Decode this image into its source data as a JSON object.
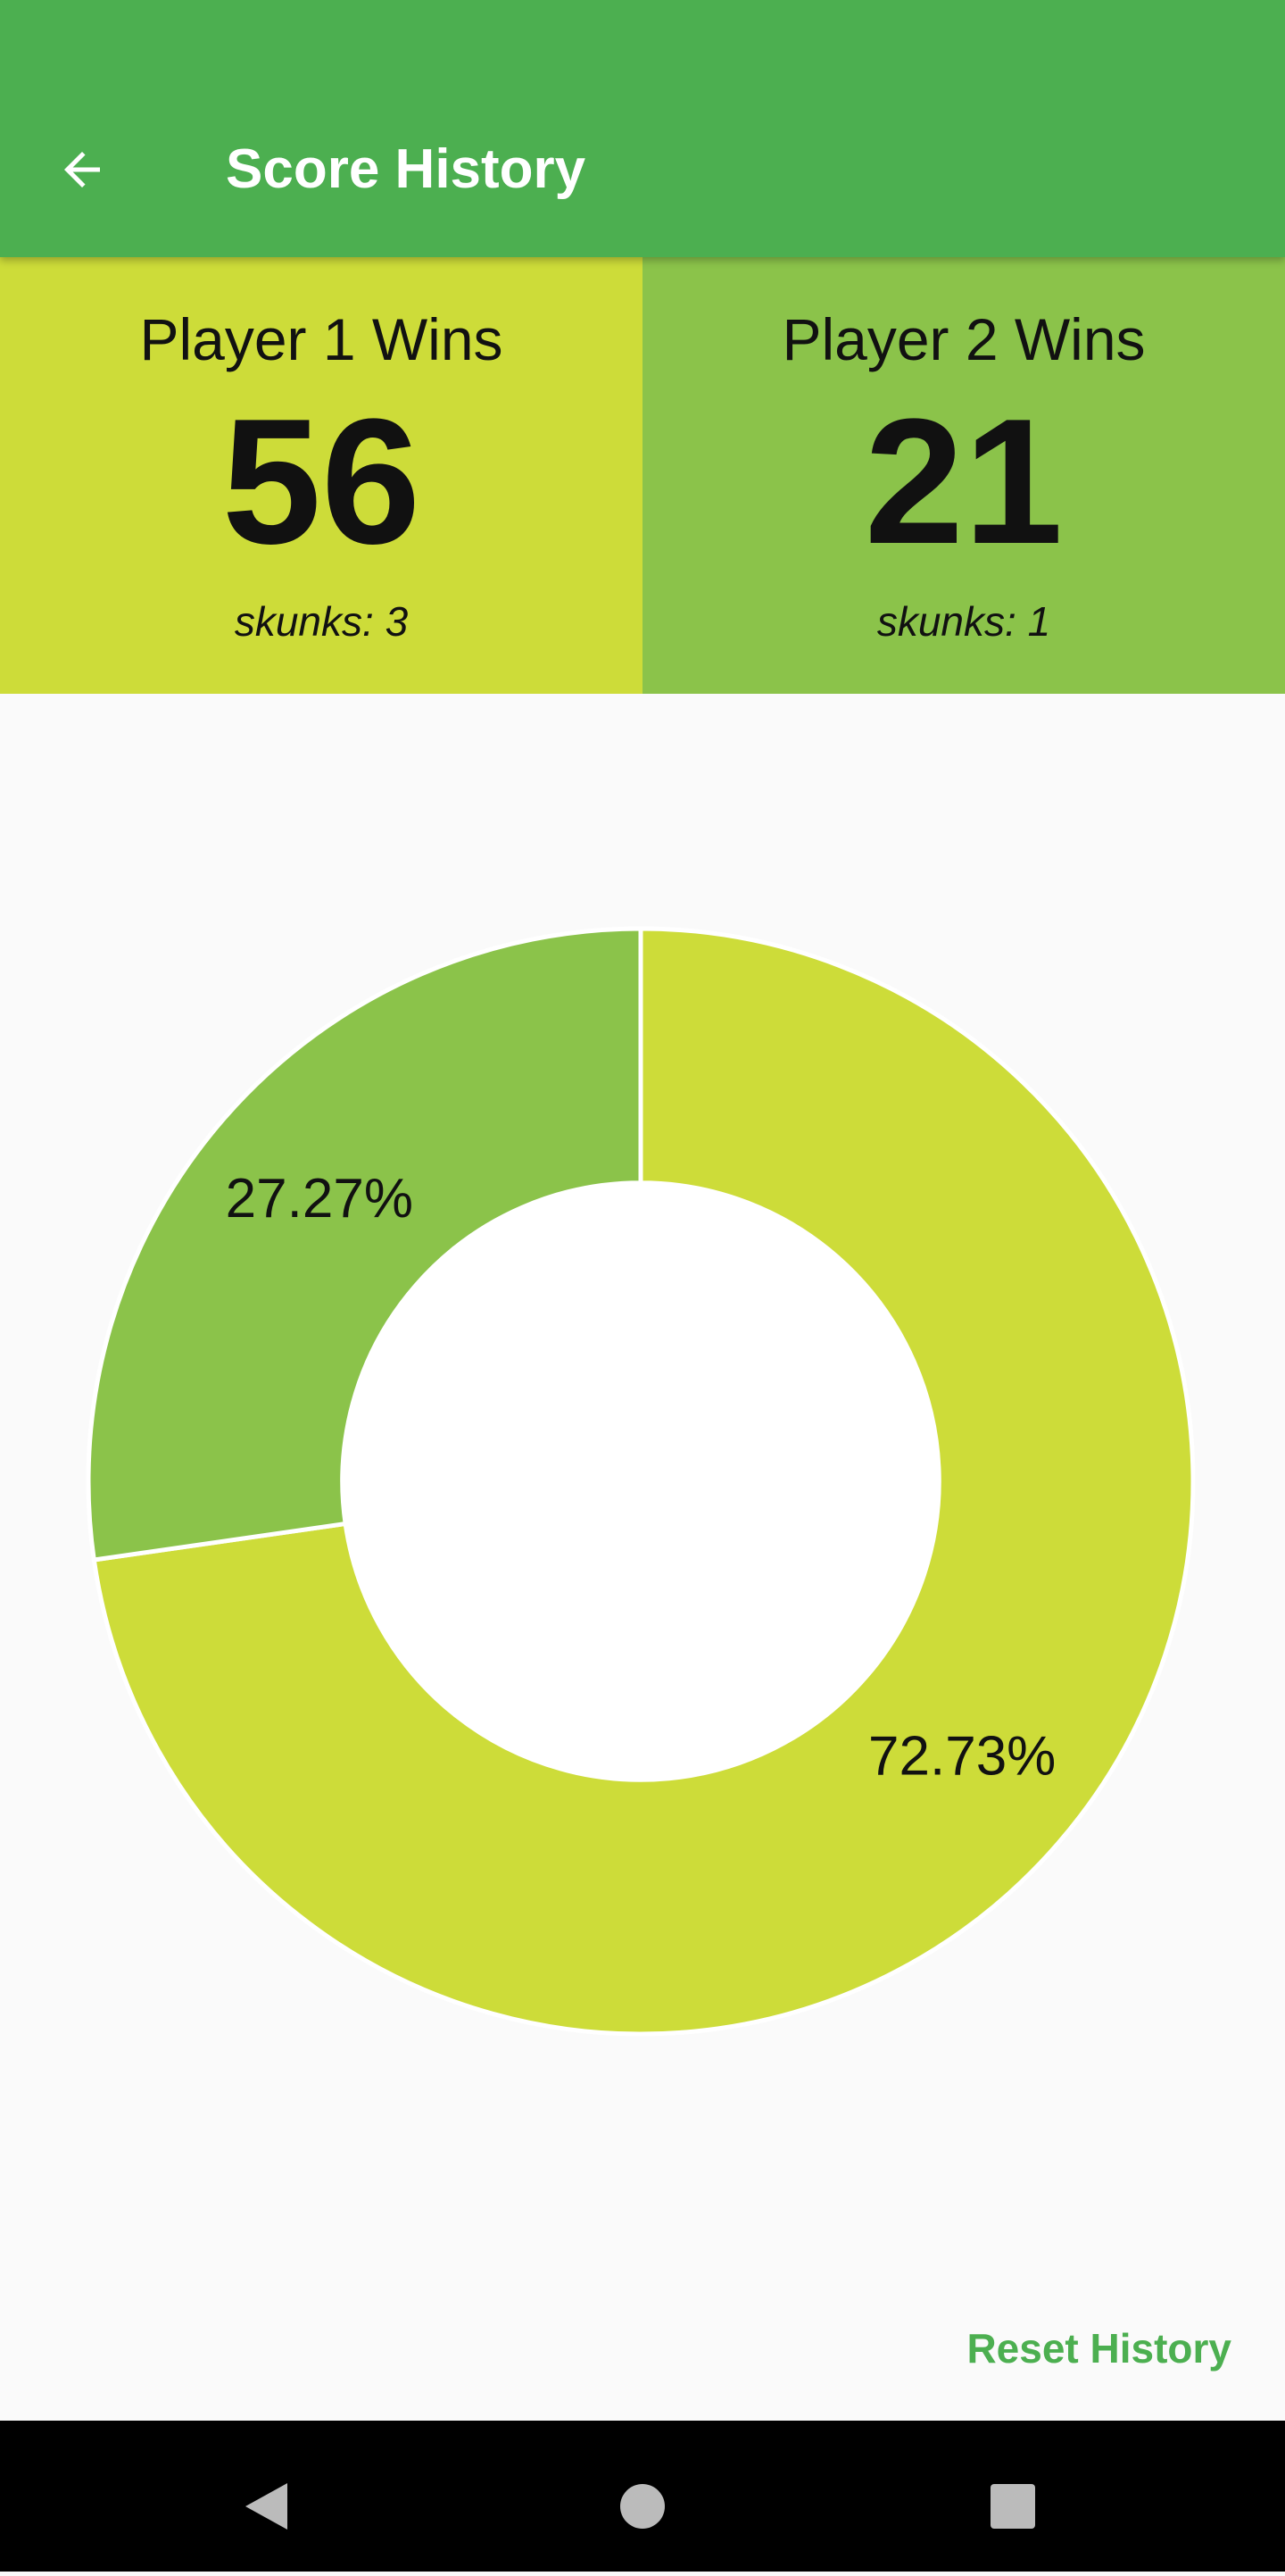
{
  "header": {
    "title": "Score History"
  },
  "players": [
    {
      "label": "Player 1 Wins",
      "wins": 56,
      "skunks": "skunks: 3",
      "color": "#cddc39"
    },
    {
      "label": "Player 2 Wins",
      "wins": 21,
      "skunks": "skunks: 1",
      "color": "#8bc34a"
    }
  ],
  "chart_data": {
    "type": "pie",
    "values": [
      72.73,
      27.27
    ],
    "value_labels": [
      "72.73%",
      "27.27%"
    ],
    "colors": [
      "#cddc39",
      "#8bc34a"
    ],
    "inner_radius_ratio": 0.54
  },
  "footer": {
    "button": "Reset History"
  }
}
